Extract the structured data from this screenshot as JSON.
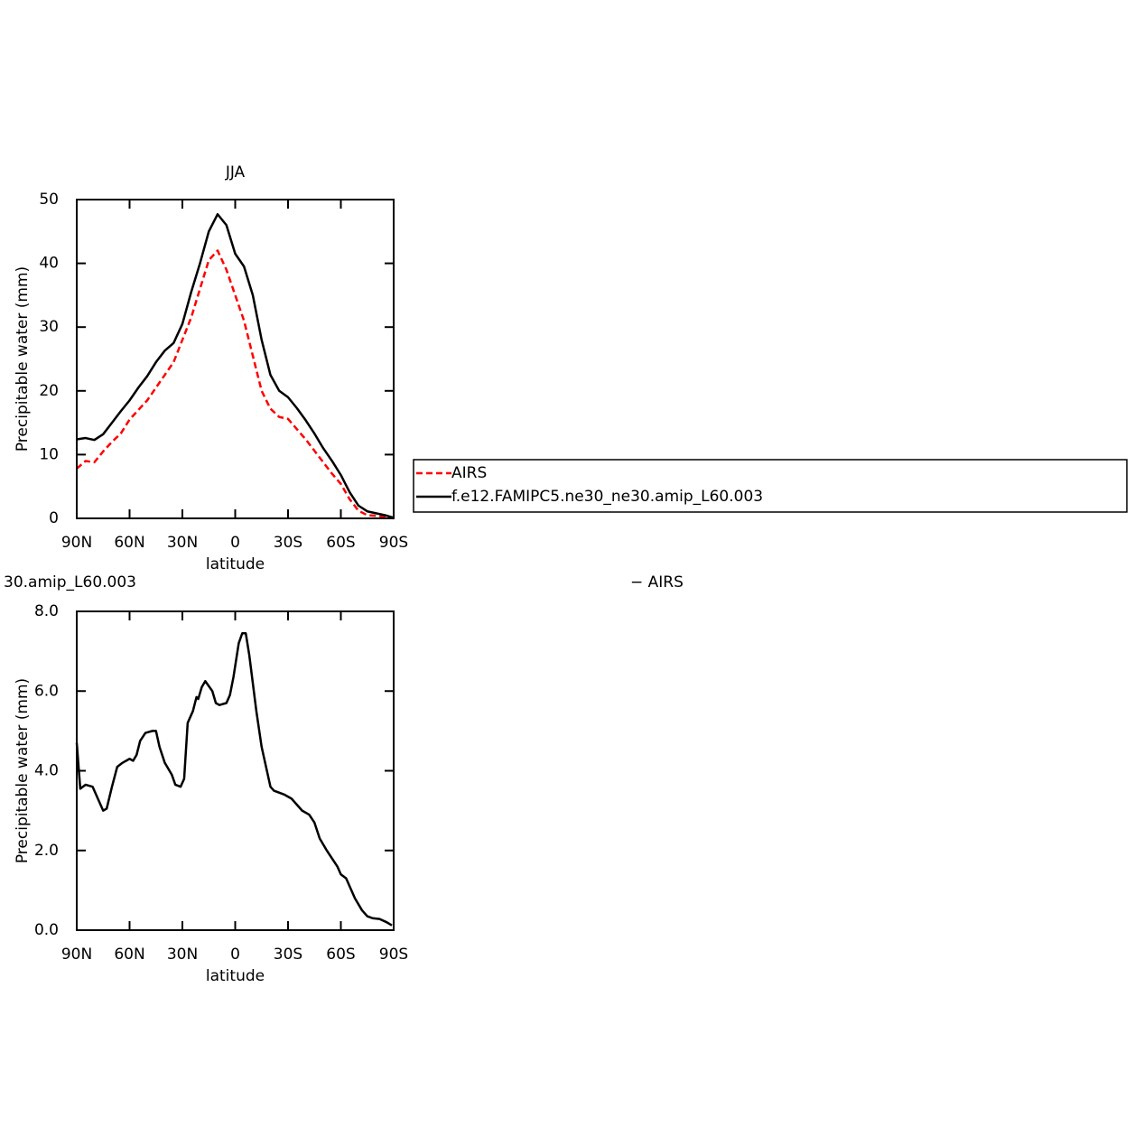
{
  "chart_data": [
    {
      "type": "line",
      "title": "JJA",
      "xlabel": "latitude",
      "ylabel": "Precipitable water (mm)",
      "x": [
        90,
        85,
        80,
        75,
        70,
        65,
        60,
        55,
        50,
        45,
        40,
        35,
        30,
        25,
        20,
        15,
        10,
        5,
        0,
        -5,
        -10,
        -15,
        -20,
        -25,
        -30,
        -35,
        -40,
        -45,
        -50,
        -55,
        -60,
        -65,
        -70,
        -75,
        -80,
        -85,
        -90
      ],
      "series": [
        {
          "name": "AIRS",
          "color": "#ff0000",
          "style": "dashed",
          "values": [
            7.8,
            9,
            8.8,
            10.5,
            12,
            13.3,
            15.5,
            17,
            18.5,
            20.5,
            22.5,
            24.5,
            28,
            31.5,
            36,
            40.5,
            42,
            39,
            35,
            31,
            25.5,
            20,
            17.2,
            15.9,
            15.6,
            14,
            12.4,
            10.6,
            8.8,
            7,
            5.4,
            3,
            1.2,
            0.5,
            0.4,
            0.2,
            0
          ]
        },
        {
          "name": "f.e12.FAMIPC5.ne30_ne30.amip_L60.003",
          "color": "#000000",
          "style": "solid",
          "values": [
            12.4,
            12.6,
            12.3,
            13.2,
            15,
            16.8,
            18.5,
            20.5,
            22.3,
            24.5,
            26.3,
            27.5,
            30.5,
            35.5,
            40,
            45,
            47.7,
            46,
            41.5,
            39.5,
            35,
            28,
            22.5,
            20,
            19,
            17.3,
            15.4,
            13.3,
            11,
            9,
            6.8,
            4.1,
            2,
            1.1,
            0.8,
            0.5,
            0.1
          ]
        }
      ],
      "xlim": [
        90,
        -90
      ],
      "xticks": [
        {
          "value": 90,
          "label": "90N"
        },
        {
          "value": 60,
          "label": "60N"
        },
        {
          "value": 30,
          "label": "30N"
        },
        0,
        {
          "value": -30,
          "label": "30S"
        },
        {
          "value": -60,
          "label": "60S"
        },
        {
          "value": -90,
          "label": "90S"
        }
      ],
      "ylim": [
        0,
        50
      ],
      "yticks": [
        0,
        10,
        20,
        30,
        40,
        50
      ]
    },
    {
      "type": "line",
      "title_parts": [
        "30.amip_L60.003",
        "− AIRS"
      ],
      "xlabel": "latitude",
      "ylabel": "Precipitable water (mm)",
      "x": [
        90,
        88,
        85,
        81,
        75,
        73,
        70,
        67,
        64,
        60,
        58,
        56,
        54,
        51,
        47,
        45,
        43,
        40,
        36,
        34,
        31,
        29,
        27,
        24,
        22,
        21,
        19,
        17,
        13,
        11,
        9,
        5,
        3,
        1,
        -2,
        -4,
        -6,
        -8,
        -12,
        -15,
        -20,
        -22,
        -28,
        -32,
        -35,
        -38,
        -42,
        -45,
        -48,
        -52,
        -58,
        -60,
        -63,
        -65,
        -68,
        -72,
        -75,
        -78,
        -82,
        -86,
        -89
      ],
      "values": [
        4.7,
        3.55,
        3.65,
        3.6,
        3.0,
        3.05,
        3.6,
        4.1,
        4.2,
        4.3,
        4.25,
        4.4,
        4.75,
        4.95,
        5.0,
        5.0,
        4.6,
        4.2,
        3.9,
        3.65,
        3.6,
        3.8,
        5.2,
        5.5,
        5.85,
        5.8,
        6.1,
        6.25,
        6.0,
        5.7,
        5.65,
        5.7,
        5.9,
        6.35,
        7.2,
        7.45,
        7.45,
        6.9,
        5.5,
        4.6,
        3.6,
        3.5,
        3.4,
        3.3,
        3.15,
        3.0,
        2.9,
        2.7,
        2.3,
        2.0,
        1.6,
        1.4,
        1.3,
        1.1,
        0.8,
        0.5,
        0.35,
        0.3,
        0.28,
        0.2,
        0.12
      ],
      "color": "#000000",
      "xlim": [
        90,
        -90
      ],
      "xticks": [
        {
          "value": 90,
          "label": "90N"
        },
        {
          "value": 60,
          "label": "60N"
        },
        {
          "value": 30,
          "label": "30N"
        },
        0,
        {
          "value": -30,
          "label": "30S"
        },
        {
          "value": -60,
          "label": "60S"
        },
        {
          "value": -90,
          "label": "90S"
        }
      ],
      "ylim": [
        0,
        8
      ],
      "yticks": [
        {
          "value": 0,
          "label": "0.0"
        },
        {
          "value": 2,
          "label": "2.0"
        },
        {
          "value": 4,
          "label": "4.0"
        },
        {
          "value": 6,
          "label": "6.0"
        },
        {
          "value": 8,
          "label": "8.0"
        }
      ]
    }
  ]
}
